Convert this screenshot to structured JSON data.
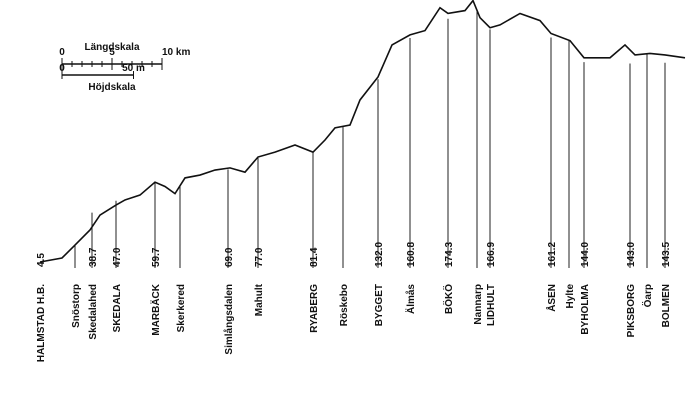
{
  "chart_data": {
    "type": "profile",
    "x": [
      0,
      2.2,
      3.5,
      5,
      6,
      7.6,
      8.5,
      10,
      11.5,
      12.5,
      13.5,
      14.5,
      16,
      17.5,
      19,
      20.5,
      21.8,
      23.5,
      25.5,
      27.3,
      28.5,
      29.5,
      31,
      32,
      33.8,
      35.2,
      37,
      38.5,
      40,
      40.8,
      42.5,
      43.3,
      44,
      45,
      46,
      48,
      50,
      51.1,
      53,
      54.4,
      55.5,
      57,
      58.5,
      59.5,
      61,
      62.5,
      64.5
    ],
    "values": [
      4.2,
      7,
      16,
      26.6,
      37,
      44,
      47.6,
      51,
      60,
      57,
      52,
      63,
      65,
      68.5,
      70,
      67,
      77.6,
      81,
      86,
      81,
      89.5,
      98,
      100,
      117.5,
      133.6,
      156,
      163,
      166,
      182,
      178,
      180,
      187,
      175,
      168,
      170,
      178,
      173,
      164,
      159,
      147,
      147,
      147,
      156,
      149,
      150,
      149,
      147
    ],
    "color": "#111111",
    "xlim": [
      -4,
      66
    ],
    "ylim": [
      0,
      187.4
    ],
    "stations": [
      {
        "name": "HALMSTAD H.B.",
        "km": 0,
        "major": true,
        "elevation": 4.5
      },
      {
        "name": "Snöstorp",
        "km": 3.5,
        "major": false
      },
      {
        "name": "Skedalahed",
        "km": 5.2,
        "major": false,
        "elevation": 38.7
      },
      {
        "name": "SKEDALA",
        "km": 7.6,
        "major": true,
        "elevation": 47,
        "elevation_label": "47.0"
      },
      {
        "name": "MARBÄCK",
        "km": 11.5,
        "major": true,
        "elevation": 59.7
      },
      {
        "name": "Skerkered",
        "km": 14,
        "major": false
      },
      {
        "name": "Simlångsdalen",
        "km": 18.8,
        "major": false,
        "elevation": 69,
        "elevation_label": "69.0"
      },
      {
        "name": "Mahult",
        "km": 21.8,
        "major": false,
        "elevation": 77,
        "elevation_label": "77.0"
      },
      {
        "name": "RYABERG",
        "km": 27.3,
        "major": true,
        "elevation": 81.4
      },
      {
        "name": "Röskebo",
        "km": 30.3,
        "major": false
      },
      {
        "name": "BYGGET",
        "km": 33.8,
        "major": true,
        "elevation": 132,
        "elevation_label": "132.0"
      },
      {
        "name": "Älmås",
        "km": 37,
        "major": false,
        "elevation": 160.8
      },
      {
        "name": "BÖKÖ",
        "km": 40.8,
        "major": true,
        "elevation": 174.3
      },
      {
        "name": "Nannarp",
        "km": 43.7,
        "major": false
      },
      {
        "name": "LIDHULT",
        "km": 45,
        "major": true,
        "elevation": 166.9
      },
      {
        "name": "ÅSEN",
        "km": 51.1,
        "major": true,
        "elevation": 161.2
      },
      {
        "name": "Hylte",
        "km": 52.9,
        "major": false
      },
      {
        "name": "BYHOLMA",
        "km": 54.4,
        "major": true,
        "elevation": 144,
        "elevation_label": "144.0"
      },
      {
        "name": "PIKSBORG",
        "km": 59,
        "major": true,
        "elevation": 143,
        "elevation_label": "143.0"
      },
      {
        "name": "Öarp",
        "km": 60.7,
        "major": false
      },
      {
        "name": "BOLMEN",
        "km": 62.5,
        "major": true,
        "elevation": 143.5
      }
    ],
    "length_scale": {
      "title": "Längdskala",
      "ticks": [
        0,
        5,
        {
          "value": 10,
          "label": "10 km"
        }
      ]
    },
    "height_scale": {
      "title": "Höjdskala",
      "ticks": [
        0,
        {
          "value": 50,
          "label": "50 m"
        }
      ]
    }
  }
}
